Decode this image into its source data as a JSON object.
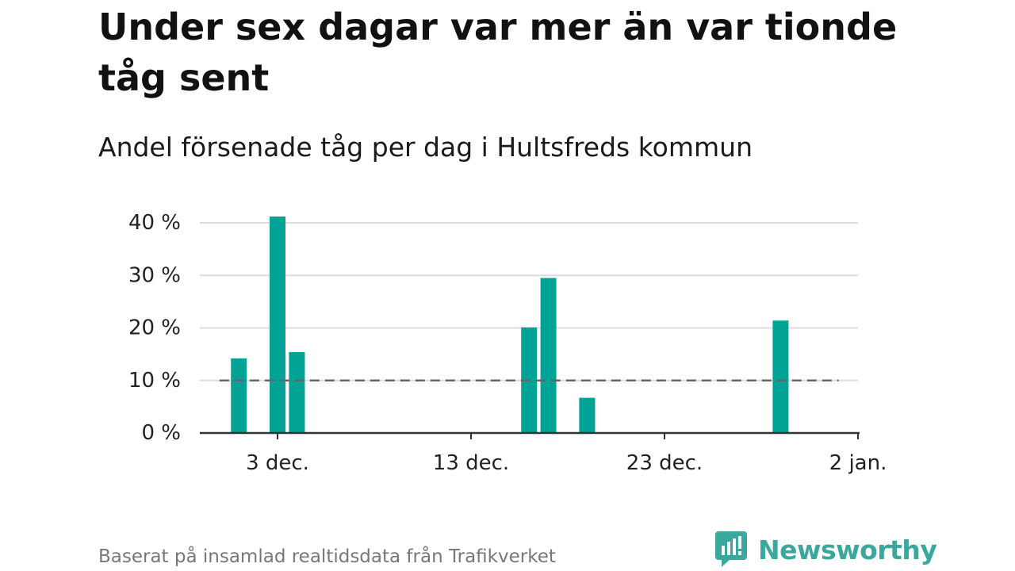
{
  "title": "Under sex dagar var mer än var tionde tåg sent",
  "subtitle": "Andel försenade tåg per dag i Hultsfreds kommun",
  "source": "Baserat på insamlad realtidsdata från Trafikverket",
  "logo": {
    "text": "Newsworthy",
    "icon": "newsworthy-logo-icon",
    "color": "#3aa89c"
  },
  "chart_data": {
    "type": "bar",
    "title": "Under sex dagar var mer än var tionde tåg sent",
    "subtitle": "Andel försenade tåg per dag i Hultsfreds kommun",
    "x_type": "date",
    "x_range": [
      "2024-11-30",
      "2025-01-02"
    ],
    "x_ticks": [
      {
        "date": "2024-12-03",
        "label": "3 dec."
      },
      {
        "date": "2024-12-13",
        "label": "13 dec."
      },
      {
        "date": "2024-12-23",
        "label": "23 dec."
      },
      {
        "date": "2025-01-02",
        "label": "2 jan."
      }
    ],
    "y_ticks": [
      {
        "value": 0,
        "label": "0 %"
      },
      {
        "value": 10,
        "label": "10 %"
      },
      {
        "value": 20,
        "label": "20 %"
      },
      {
        "value": 30,
        "label": "30 %"
      },
      {
        "value": 40,
        "label": "40 %"
      }
    ],
    "ylim": [
      0,
      40
    ],
    "y_unit": "%",
    "grid": true,
    "bar_color": "#00a396",
    "reference_line": {
      "value": 10,
      "style": "dashed",
      "color": "#666666"
    },
    "points": [
      {
        "date": "2024-12-01",
        "value": 14.2
      },
      {
        "date": "2024-12-03",
        "value": 41.2
      },
      {
        "date": "2024-12-04",
        "value": 15.4
      },
      {
        "date": "2024-12-16",
        "value": 20.1
      },
      {
        "date": "2024-12-17",
        "value": 29.5
      },
      {
        "date": "2024-12-19",
        "value": 6.7
      },
      {
        "date": "2024-12-29",
        "value": 21.4
      }
    ]
  }
}
